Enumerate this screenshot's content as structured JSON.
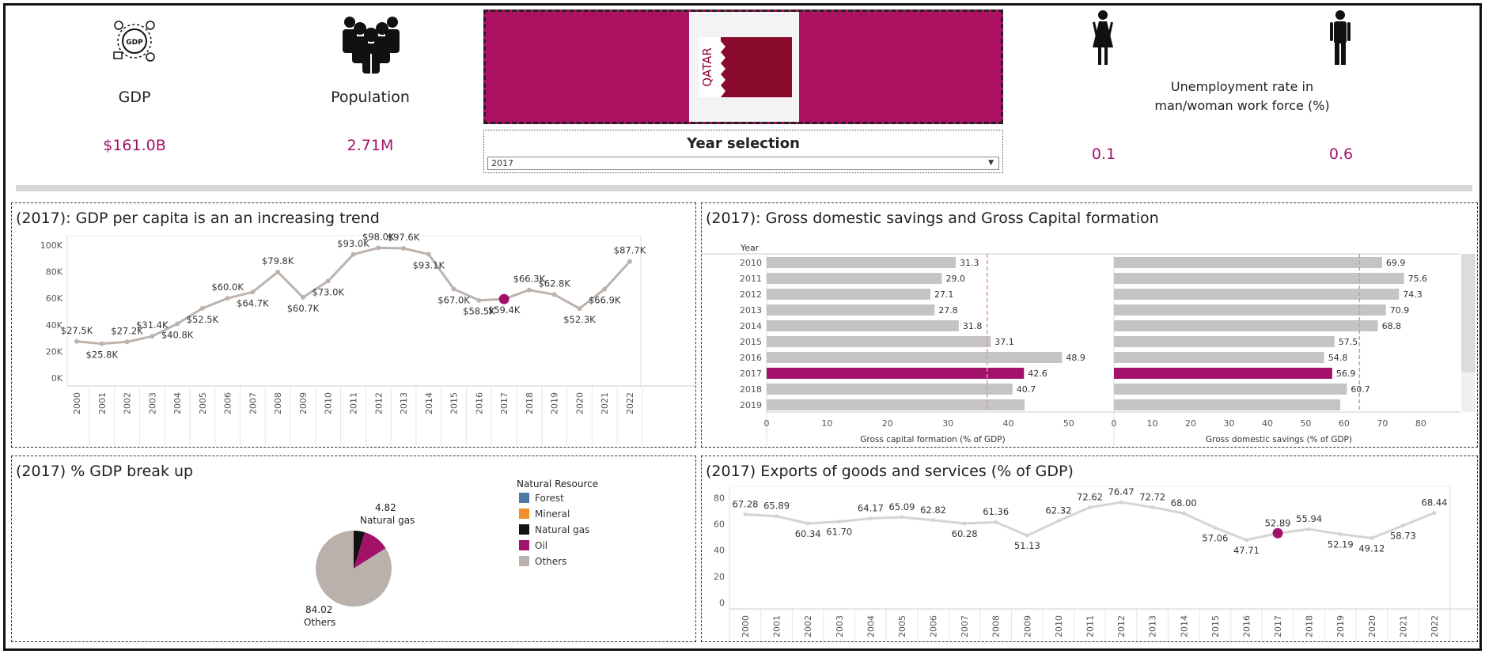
{
  "kpis": {
    "gdp_label": "GDP",
    "gdp_value": "$161.0B",
    "population_label": "Population",
    "population_value": "2.71M",
    "unemployment_label_line1": "Unemployment rate in",
    "unemployment_label_line2": "man/woman work force (%)",
    "unemployment_woman": "0.1",
    "unemployment_man": "0.6"
  },
  "flag": {
    "country_text": "QATAR",
    "color": "#ad1162",
    "maroon": "#8a0a2e"
  },
  "year_selection": {
    "title": "Year selection",
    "selected": "2017"
  },
  "icons": [
    "gdp-globe-icon",
    "population-group-icon",
    "woman-icon",
    "man-icon"
  ],
  "colors": {
    "highlight": "#a3126a",
    "line": "#bdb3ad",
    "bar": "#c4c4c4",
    "ref_line": "#e091b0"
  },
  "panels": {
    "gdp_per_capita": {
      "title": "(2017): GDP per capita is an an increasing trend",
      "chart_data": {
        "type": "line",
        "x": [
          "2000",
          "2001",
          "2002",
          "2003",
          "2004",
          "2005",
          "2006",
          "2007",
          "2008",
          "2009",
          "2010",
          "2011",
          "2012",
          "2013",
          "2014",
          "2015",
          "2016",
          "2017",
          "2018",
          "2019",
          "2020",
          "2021",
          "2022"
        ],
        "y": [
          27.5,
          25.8,
          27.2,
          31.4,
          40.8,
          52.5,
          60.0,
          64.7,
          79.8,
          60.7,
          73.0,
          93.0,
          98.0,
          97.6,
          93.1,
          67.0,
          58.5,
          59.4,
          66.3,
          62.8,
          52.3,
          66.9,
          87.7
        ],
        "labels": [
          "$27.5K",
          "$25.8K",
          "$27.2K",
          "$31.4K",
          "$40.8K",
          "$52.5K",
          "$60.0K",
          "$64.7K",
          "$79.8K",
          "$60.7K",
          "$73.0K",
          "$93.0K",
          "$98.0K",
          "$97.6K",
          "$93.1K",
          "$67.0K",
          "$58.5K",
          "$59.4K",
          "$66.3K",
          "$62.8K",
          "$52.3K",
          "$66.9K",
          "$87.7K"
        ],
        "yticks": [
          "0K",
          "20K",
          "40K",
          "60K",
          "80K",
          "100K"
        ],
        "ylim": [
          0,
          100
        ],
        "highlight": "2017"
      }
    },
    "savings": {
      "title": "(2017): Gross domestic  savings and Gross Capital formation",
      "chart_data": {
        "type": "bar",
        "year_header": "Year",
        "categories": [
          "2010",
          "2011",
          "2012",
          "2013",
          "2014",
          "2015",
          "2016",
          "2017",
          "2018",
          "2019"
        ],
        "series": [
          {
            "name": "Gross capital formation (% of GDP)",
            "values": [
              31.3,
              29.0,
              27.1,
              27.8,
              31.8,
              37.1,
              48.9,
              42.6,
              40.7,
              42.7
            ],
            "labels": [
              "31.3",
              "29.0",
              "27.1",
              "27.8",
              "31.8",
              "37.1",
              "48.9",
              "42.6",
              "40.7",
              ""
            ],
            "ticks": [
              "0",
              "10",
              "20",
              "30",
              "40",
              "50"
            ],
            "xlim": [
              0,
              55
            ],
            "ref": 36.5
          },
          {
            "name": "Gross domestic savings (% of GDP)",
            "values": [
              69.9,
              75.6,
              74.3,
              70.9,
              68.8,
              57.5,
              54.8,
              56.9,
              60.7,
              59.0
            ],
            "labels": [
              "69.9",
              "75.6",
              "74.3",
              "70.9",
              "68.8",
              "57.5",
              "54.8",
              "56.9",
              "60.7",
              ""
            ],
            "ticks": [
              "0",
              "10",
              "20",
              "30",
              "40",
              "50",
              "60",
              "70",
              "80"
            ],
            "xlim": [
              0,
              86
            ],
            "ref": 64.0
          }
        ],
        "highlight": "2017"
      }
    },
    "gdp_breakup": {
      "title": "(2017) % GDP break up",
      "legend_title": "Natural Resource",
      "chart_data": {
        "type": "pie",
        "categories": [
          "Forest",
          "Mineral",
          "Natural gas",
          "Oil",
          "Others"
        ],
        "colors": [
          "#4e79a7",
          "#f28e2b",
          "#111111",
          "#a3126a",
          "#bab0ac"
        ],
        "values": [
          0,
          0,
          4.82,
          11.16,
          84.02
        ]
      },
      "labels": {
        "gas_value": "4.82",
        "gas_name": "Natural gas",
        "others_value": "84.02",
        "others_name": "Others"
      }
    },
    "exports": {
      "title": "(2017) Exports of goods and services (% of GDP)",
      "chart_data": {
        "type": "line",
        "x": [
          "2000",
          "2001",
          "2002",
          "2003",
          "2004",
          "2005",
          "2006",
          "2007",
          "2008",
          "2009",
          "2010",
          "2011",
          "2012",
          "2013",
          "2014",
          "2015",
          "2016",
          "2017",
          "2018",
          "2019",
          "2020",
          "2021",
          "2022"
        ],
        "y": [
          67.28,
          65.89,
          60.34,
          61.7,
          64.17,
          65.09,
          62.82,
          60.28,
          61.36,
          51.13,
          62.32,
          72.62,
          76.47,
          72.72,
          68.0,
          57.06,
          47.71,
          52.89,
          55.94,
          52.19,
          49.12,
          58.73,
          68.44
        ],
        "labels": [
          "67.28",
          "65.89",
          "60.34",
          "61.70",
          "64.17",
          "65.09",
          "62.82",
          "60.28",
          "61.36",
          "51.13",
          "62.32",
          "72.62",
          "76.47",
          "72.72",
          "68.00",
          "57.06",
          "47.71",
          "52.89",
          "55.94",
          "52.19",
          "49.12",
          "58.73",
          "68.44"
        ],
        "yticks": [
          "0",
          "20",
          "40",
          "60",
          "80"
        ],
        "ylim": [
          0,
          85
        ],
        "highlight": "2017"
      }
    }
  }
}
